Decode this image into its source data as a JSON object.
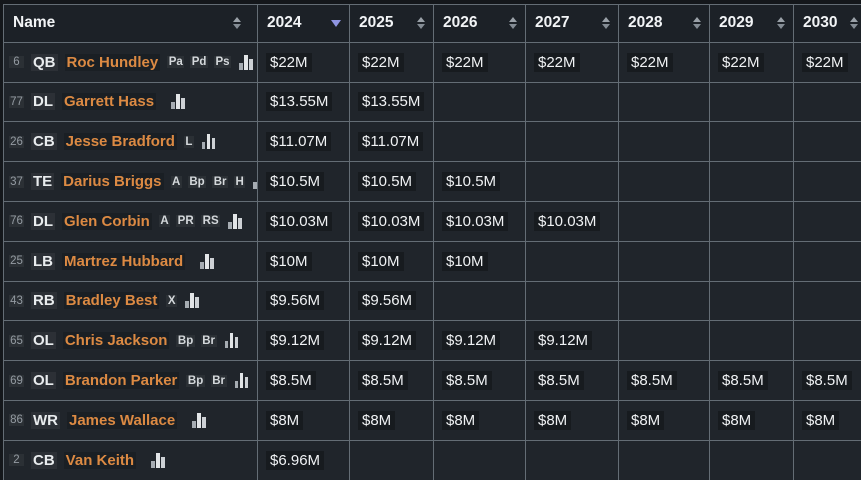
{
  "table": {
    "columns": [
      {
        "label": "Name",
        "sort": "none"
      },
      {
        "label": "2024",
        "sort": "desc"
      },
      {
        "label": "2025",
        "sort": "none"
      },
      {
        "label": "2026",
        "sort": "none"
      },
      {
        "label": "2027",
        "sort": "none"
      },
      {
        "label": "2028",
        "sort": "none"
      },
      {
        "label": "2029",
        "sort": "none"
      },
      {
        "label": "2030",
        "sort": "none"
      }
    ],
    "rows": [
      {
        "number": "6",
        "position": "QB",
        "name": "Roc Hundley",
        "badges": [
          "Pa",
          "Pd",
          "Ps"
        ],
        "values": [
          "$22M",
          "$22M",
          "$22M",
          "$22M",
          "$22M",
          "$22M",
          "$22M"
        ]
      },
      {
        "number": "77",
        "position": "DL",
        "name": "Garrett Hass",
        "badges": [],
        "values": [
          "$13.55M",
          "$13.55M",
          "",
          "",
          "",
          "",
          ""
        ]
      },
      {
        "number": "26",
        "position": "CB",
        "name": "Jesse Bradford",
        "badges": [
          "L"
        ],
        "values": [
          "$11.07M",
          "$11.07M",
          "",
          "",
          "",
          "",
          ""
        ]
      },
      {
        "number": "37",
        "position": "TE",
        "name": "Darius Briggs",
        "badges": [
          "A",
          "Bp",
          "Br",
          "H"
        ],
        "values": [
          "$10.5M",
          "$10.5M",
          "$10.5M",
          "",
          "",
          "",
          ""
        ]
      },
      {
        "number": "76",
        "position": "DL",
        "name": "Glen Corbin",
        "badges": [
          "A",
          "PR",
          "RS"
        ],
        "values": [
          "$10.03M",
          "$10.03M",
          "$10.03M",
          "$10.03M",
          "",
          "",
          ""
        ]
      },
      {
        "number": "25",
        "position": "LB",
        "name": "Martrez Hubbard",
        "badges": [],
        "values": [
          "$10M",
          "$10M",
          "$10M",
          "",
          "",
          "",
          ""
        ]
      },
      {
        "number": "43",
        "position": "RB",
        "name": "Bradley Best",
        "badges": [
          "X"
        ],
        "values": [
          "$9.56M",
          "$9.56M",
          "",
          "",
          "",
          "",
          ""
        ]
      },
      {
        "number": "65",
        "position": "OL",
        "name": "Chris Jackson",
        "badges": [
          "Bp",
          "Br"
        ],
        "values": [
          "$9.12M",
          "$9.12M",
          "$9.12M",
          "$9.12M",
          "",
          "",
          ""
        ]
      },
      {
        "number": "69",
        "position": "OL",
        "name": "Brandon Parker",
        "badges": [
          "Bp",
          "Br"
        ],
        "values": [
          "$8.5M",
          "$8.5M",
          "$8.5M",
          "$8.5M",
          "$8.5M",
          "$8.5M",
          "$8.5M"
        ]
      },
      {
        "number": "86",
        "position": "WR",
        "name": "James Wallace",
        "badges": [],
        "values": [
          "$8M",
          "$8M",
          "$8M",
          "$8M",
          "$8M",
          "$8M",
          "$8M"
        ]
      },
      {
        "number": "2",
        "position": "CB",
        "name": "Van Keith",
        "badges": [],
        "values": [
          "$6.96M",
          "",
          "",
          "",
          "",
          "",
          ""
        ]
      }
    ],
    "colors": {
      "row_background": "#20252b",
      "header_background": "#1c2127",
      "border": "#646d75",
      "player_name": "#dc8a43",
      "active_sort_arrow": "#8f95e2"
    }
  }
}
